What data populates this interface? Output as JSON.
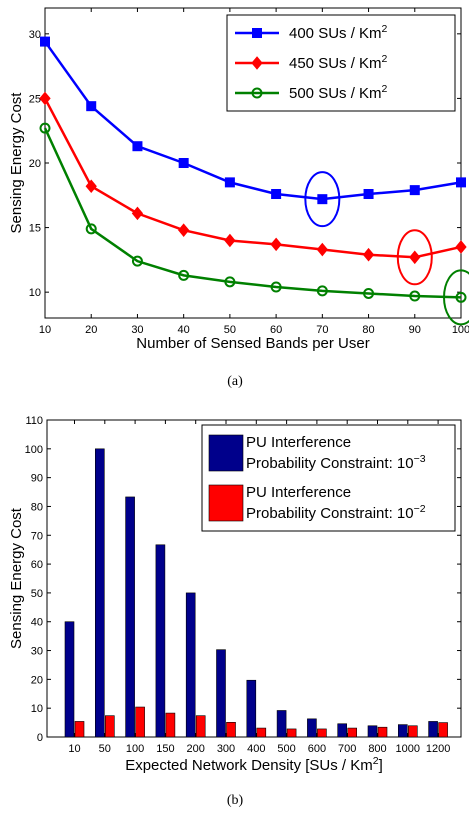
{
  "chart_data": [
    {
      "type": "line",
      "caption": "(a)",
      "xlabel": "Number of Sensed Bands per User",
      "ylabel": "Sensing Energy Cost",
      "xlim": [
        10,
        100
      ],
      "ylim": [
        8,
        32
      ],
      "xticks": [
        10,
        20,
        30,
        40,
        50,
        60,
        70,
        80,
        90,
        100
      ],
      "yticks": [
        10,
        15,
        20,
        25,
        30
      ],
      "grid": false,
      "legend_position": "top-right",
      "x": [
        10,
        20,
        30,
        40,
        50,
        60,
        70,
        80,
        90,
        100
      ],
      "series": [
        {
          "name_prefix": "400 SUs / Km",
          "name_sup": "2",
          "color": "#0000ff",
          "marker": "square",
          "values": [
            29.4,
            24.4,
            21.3,
            20.0,
            18.5,
            17.6,
            17.2,
            17.6,
            17.9,
            18.5
          ]
        },
        {
          "name_prefix": "450 SUs / Km",
          "name_sup": "2",
          "color": "#ff0000",
          "marker": "diamond",
          "values": [
            25.0,
            18.2,
            16.1,
            14.8,
            14.0,
            13.7,
            13.3,
            12.9,
            12.7,
            13.5
          ]
        },
        {
          "name_prefix": "500 SUs / Km",
          "name_sup": "2",
          "color": "#008000",
          "marker": "circle",
          "values": [
            22.7,
            14.9,
            12.4,
            11.3,
            10.8,
            10.4,
            10.1,
            9.9,
            9.7,
            9.6
          ]
        }
      ],
      "highlighted_points": [
        {
          "series": 0,
          "x": 70,
          "color": "#0000ff"
        },
        {
          "series": 1,
          "x": 90,
          "color": "#ff0000"
        },
        {
          "series": 2,
          "x": 100,
          "color": "#008000"
        }
      ]
    },
    {
      "type": "bar",
      "caption": "(b)",
      "xlabel_prefix": "Expected Network Density [SUs / Km",
      "xlabel_sup": "2",
      "xlabel_suffix": "]",
      "ylabel": "Sensing Energy Cost",
      "ylim": [
        0,
        110
      ],
      "yticks": [
        0,
        10,
        20,
        30,
        40,
        50,
        60,
        70,
        80,
        90,
        100,
        110
      ],
      "grid": false,
      "legend_position": "top-right",
      "categories": [
        "10",
        "50",
        "100",
        "150",
        "200",
        "300",
        "400",
        "500",
        "600",
        "700",
        "800",
        "1000",
        "1200"
      ],
      "series": [
        {
          "name_line1": "PU Interference",
          "name_line2_prefix": "Probability Constraint: 10",
          "name_sup": "−3",
          "color": "#00008b",
          "values": [
            40,
            100,
            83.3,
            66.7,
            50,
            30.3,
            19.7,
            9.2,
            6.3,
            4.6,
            3.9,
            4.3,
            5.4
          ]
        },
        {
          "name_line1": "PU Interference",
          "name_line2_prefix": "Probability Constraint: 10",
          "name_sup": "−2",
          "color": "#ff0000",
          "values": [
            5.4,
            7.4,
            10.4,
            8.3,
            7.4,
            5.1,
            3.1,
            2.8,
            2.8,
            3.1,
            3.4,
            3.9,
            5.0
          ]
        }
      ]
    }
  ]
}
